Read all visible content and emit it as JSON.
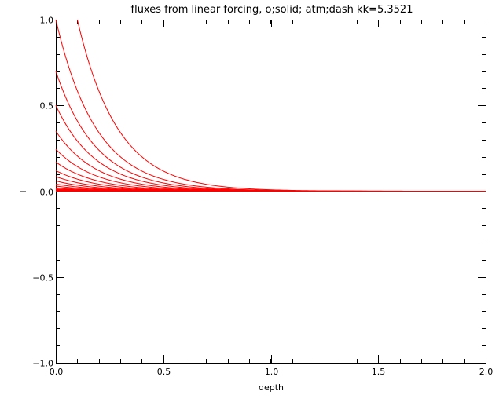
{
  "chart_data": {
    "type": "line",
    "title": "fluxes from linear forcing, o;solid; atm;dash kk=5.3521",
    "xlabel": "depth",
    "ylabel": "T",
    "xlim": [
      0.0,
      2.0
    ],
    "ylim": [
      -1.0,
      1.0
    ],
    "x_ticks": [
      0.0,
      0.5,
      1.0,
      1.5,
      2.0
    ],
    "x_tick_labels": [
      "0.0",
      "0.5",
      "1.0",
      "1.5",
      "2.0"
    ],
    "y_ticks": [
      -1.0,
      -0.5,
      0.0,
      0.5,
      1.0
    ],
    "y_tick_labels": [
      "−1.0",
      "−0.5",
      "0.0",
      "0.5",
      "1.0"
    ],
    "grid": false,
    "line_color": "#ff0000",
    "decay_rate": 5.3521,
    "curves": [
      {
        "x0": 0.1,
        "y0": 1.0,
        "x_end": 2.0
      },
      {
        "x0": 0.0,
        "y0": 1.0,
        "x_end": 1.82
      },
      {
        "x0": 0.0,
        "y0": 0.7,
        "x_end": 1.54
      },
      {
        "x0": 0.0,
        "y0": 0.5,
        "x_end": 1.54
      },
      {
        "x0": 0.0,
        "y0": 0.35,
        "x_end": 1.54
      },
      {
        "x0": 0.0,
        "y0": 0.245,
        "x_end": 1.3
      },
      {
        "x0": 0.0,
        "y0": 0.17,
        "x_end": 1.3
      },
      {
        "x0": 0.0,
        "y0": 0.12,
        "x_end": 1.3
      },
      {
        "x0": 0.0,
        "y0": 0.085,
        "x_end": 1.3
      },
      {
        "x0": 0.0,
        "y0": 0.06,
        "x_end": 1.3
      },
      {
        "x0": 0.0,
        "y0": 0.042,
        "x_end": 1.3
      },
      {
        "x0": 0.0,
        "y0": 0.03,
        "x_end": 1.3
      },
      {
        "x0": 0.0,
        "y0": 0.02,
        "x_end": 1.3
      },
      {
        "x0": 0.0,
        "y0": 0.014,
        "x_end": 1.3
      },
      {
        "x0": 0.0,
        "y0": 0.01,
        "x_end": 1.3
      },
      {
        "x0": 0.0,
        "y0": 0.007,
        "x_end": 1.3
      },
      {
        "x0": 0.0,
        "y0": 0.005,
        "x_end": 1.3
      }
    ]
  }
}
